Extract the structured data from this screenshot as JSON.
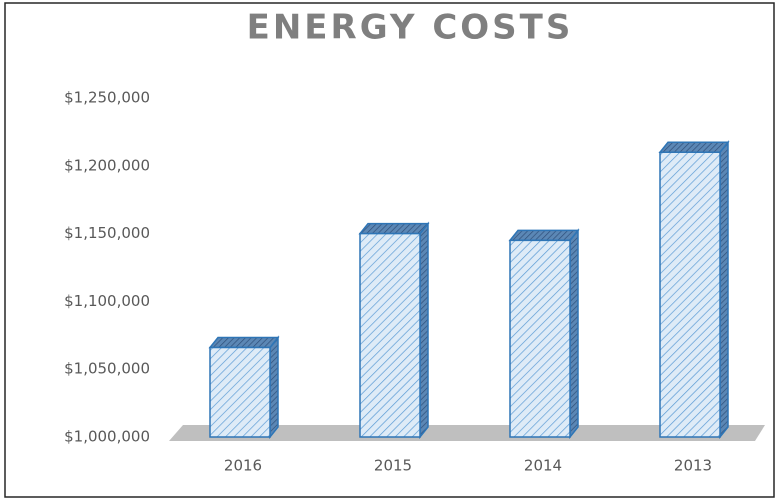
{
  "chart_data": {
    "type": "bar",
    "title": "ENERGY COSTS",
    "categories": [
      "2016",
      "2015",
      "2014",
      "2013"
    ],
    "values": [
      1066000,
      1150000,
      1145000,
      1210000
    ],
    "color": "#2e75b6",
    "ylim": [
      1000000,
      1250000
    ],
    "yticks": [
      {
        "value": 1000000,
        "label": "$1,000,000"
      },
      {
        "value": 1050000,
        "label": "$1,050,000"
      },
      {
        "value": 1100000,
        "label": "$1,100,000"
      },
      {
        "value": 1150000,
        "label": "$1,150,000"
      },
      {
        "value": 1200000,
        "label": "$1,200,000"
      },
      {
        "value": 1250000,
        "label": "$1,250,000"
      }
    ],
    "grid": false
  }
}
